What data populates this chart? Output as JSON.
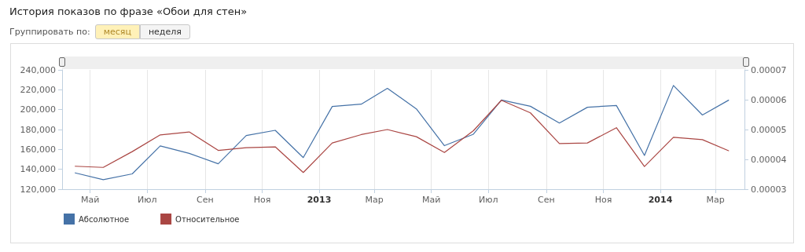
{
  "chart_data": {
    "type": "line",
    "title": "История показов по фразе «Обои для стен»",
    "annotations": [
      "Группировать по:",
      "месяц",
      "неделя"
    ],
    "x": [
      "2012-04-15",
      "2012-05-15",
      "2012-06-15",
      "2012-07-15",
      "2012-08-15",
      "2012-09-15",
      "2012-10-15",
      "2012-11-15",
      "2012-12-15",
      "2013-01-15",
      "2013-02-15",
      "2013-03-15",
      "2013-04-15",
      "2013-05-15",
      "2013-06-15",
      "2013-07-15",
      "2013-08-15",
      "2013-09-15",
      "2013-10-15",
      "2013-11-15",
      "2013-12-15",
      "2014-01-15",
      "2014-02-15",
      "2014-03-15"
    ],
    "series": [
      {
        "name": "Абсолютное",
        "color": "#4572a7",
        "values": [
          136400,
          129600,
          135400,
          163500,
          156000,
          145600,
          174000,
          179200,
          151800,
          203200,
          205500,
          221400,
          200800,
          163800,
          175300,
          209700,
          203400,
          186500,
          202400,
          204200,
          153900,
          224300,
          194600,
          209500
        ]
      },
      {
        "name": "Относительное",
        "color": "#aa4643",
        "axis": "y2",
        "values": [
          3.77e-05,
          3.73e-05,
          4.26e-05,
          4.82e-05,
          4.92e-05,
          4.3e-05,
          4.39e-05,
          4.42e-05,
          3.56e-05,
          4.55e-05,
          4.83e-05,
          5e-05,
          4.76e-05,
          4.23e-05,
          4.96e-05,
          5.98e-05,
          5.56e-05,
          4.53e-05,
          4.55e-05,
          5.06e-05,
          3.76e-05,
          4.74e-05,
          4.66e-05,
          4.29e-05
        ]
      }
    ],
    "xlim": [
      "2012-04-01",
      "2014-04-01"
    ],
    "xticks": [
      {
        "value": "2012-05",
        "label": "Май"
      },
      {
        "value": "2012-07",
        "label": "Июл"
      },
      {
        "value": "2012-09",
        "label": "Сен"
      },
      {
        "value": "2012-11",
        "label": "Ноя"
      },
      {
        "value": "2013-01",
        "label": "2013"
      },
      {
        "value": "2013-03",
        "label": "Мар"
      },
      {
        "value": "2013-05",
        "label": "Май"
      },
      {
        "value": "2013-07",
        "label": "Июл"
      },
      {
        "value": "2013-09",
        "label": "Сен"
      },
      {
        "value": "2013-11",
        "label": "Ноя"
      },
      {
        "value": "2014-01",
        "label": "2014"
      },
      {
        "value": "2014-03",
        "label": "Мар"
      }
    ],
    "ylim": [
      120000,
      240000
    ],
    "yticks": [
      {
        "value": 120000,
        "label": "120,000"
      },
      {
        "value": 140000,
        "label": "140,000"
      },
      {
        "value": 160000,
        "label": "160,000"
      },
      {
        "value": 180000,
        "label": "180,000"
      },
      {
        "value": 200000,
        "label": "200,000"
      },
      {
        "value": 220000,
        "label": "220,000"
      },
      {
        "value": 240000,
        "label": "240,000"
      }
    ],
    "y2lim": [
      3e-05,
      7e-05
    ],
    "y2ticks": [
      {
        "value": 3e-05,
        "label": "0.00003"
      },
      {
        "value": 4e-05,
        "label": "0.00004"
      },
      {
        "value": 5e-05,
        "label": "0.00005"
      },
      {
        "value": 6e-05,
        "label": "0.00006"
      },
      {
        "value": 7e-05,
        "label": "0.00007"
      }
    ],
    "grid": "x",
    "legend": "bottom left",
    "marker": "none",
    "line_style": "solid"
  }
}
